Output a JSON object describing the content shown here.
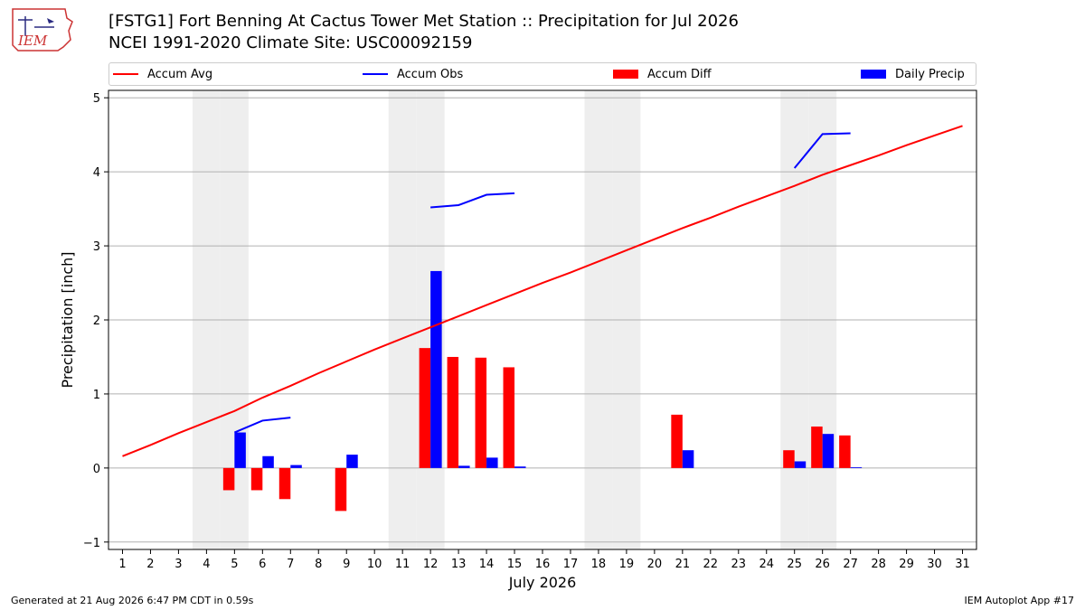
{
  "header": {
    "title_line1": "[FSTG1] Fort Benning At Cactus Tower Met Station :: Precipitation for Jul 2026",
    "title_line2": "NCEI 1991-2020 Climate Site: USC00092159"
  },
  "logo": {
    "text": "IEM"
  },
  "footer": {
    "generated": "Generated at 21 Aug 2026 6:47 PM CDT in 0.59s",
    "app": "IEM Autoplot App #17"
  },
  "colors": {
    "red": "#ff0000",
    "blue": "#0000ff",
    "weekend": "#eeeeee",
    "grid": "#b0b0b0"
  },
  "chart_data": {
    "type": "bar",
    "xlabel": "July 2026",
    "ylabel": "Precipitation [inch]",
    "xlim": [
      0.5,
      31.5
    ],
    "ylim": [
      -1.1,
      5.1
    ],
    "yticks": [
      -1,
      0,
      1,
      2,
      3,
      4,
      5
    ],
    "xticks": [
      1,
      2,
      3,
      4,
      5,
      6,
      7,
      8,
      9,
      10,
      11,
      12,
      13,
      14,
      15,
      16,
      17,
      18,
      19,
      20,
      21,
      22,
      23,
      24,
      25,
      26,
      27,
      28,
      29,
      30,
      31
    ],
    "legend_position": "top",
    "grid": "horizontal",
    "shaded_days": [
      4,
      5,
      11,
      12,
      18,
      19,
      25,
      26
    ],
    "series": [
      {
        "name": "Accum Avg",
        "kind": "line",
        "color": "#ff0000",
        "x": [
          1,
          2,
          3,
          4,
          5,
          6,
          7,
          8,
          9,
          10,
          11,
          12,
          13,
          14,
          15,
          16,
          17,
          18,
          19,
          20,
          21,
          22,
          23,
          24,
          25,
          26,
          27,
          28,
          29,
          30,
          31
        ],
        "values": [
          0.16,
          0.31,
          0.47,
          0.62,
          0.77,
          0.95,
          1.11,
          1.28,
          1.44,
          1.6,
          1.75,
          1.9,
          2.05,
          2.2,
          2.35,
          2.5,
          2.64,
          2.79,
          2.94,
          3.09,
          3.24,
          3.38,
          3.53,
          3.67,
          3.81,
          3.96,
          4.09,
          4.22,
          4.36,
          4.49,
          4.62
        ]
      },
      {
        "name": "Accum Obs",
        "kind": "line",
        "color": "#0000ff",
        "x": [
          1,
          2,
          3,
          4,
          5,
          6,
          7,
          8,
          9,
          10,
          11,
          12,
          13,
          14,
          15,
          16,
          17,
          18,
          19,
          20,
          21,
          22,
          23,
          24,
          25,
          26,
          27,
          28,
          29,
          30,
          31
        ],
        "values": [
          null,
          null,
          null,
          null,
          0.48,
          0.64,
          0.68,
          null,
          null,
          null,
          null,
          3.52,
          3.55,
          3.69,
          3.71,
          null,
          null,
          null,
          null,
          null,
          null,
          null,
          null,
          null,
          4.05,
          4.51,
          4.52,
          null,
          null,
          null,
          null
        ]
      },
      {
        "name": "Accum Diff",
        "kind": "bar",
        "color": "#ff0000",
        "x": [
          5,
          6,
          7,
          9,
          12,
          13,
          14,
          15,
          21,
          25,
          26,
          27
        ],
        "values": [
          -0.3,
          -0.3,
          -0.42,
          -0.58,
          1.62,
          1.5,
          1.49,
          1.36,
          0.72,
          0.24,
          0.56,
          0.44
        ]
      },
      {
        "name": "Daily Precip",
        "kind": "bar",
        "color": "#0000ff",
        "x": [
          5,
          6,
          7,
          9,
          12,
          13,
          14,
          15,
          21,
          25,
          26,
          27
        ],
        "values": [
          0.48,
          0.16,
          0.04,
          0.18,
          2.66,
          0.03,
          0.14,
          0.02,
          0.24,
          0.09,
          0.46,
          0.01
        ]
      }
    ]
  }
}
